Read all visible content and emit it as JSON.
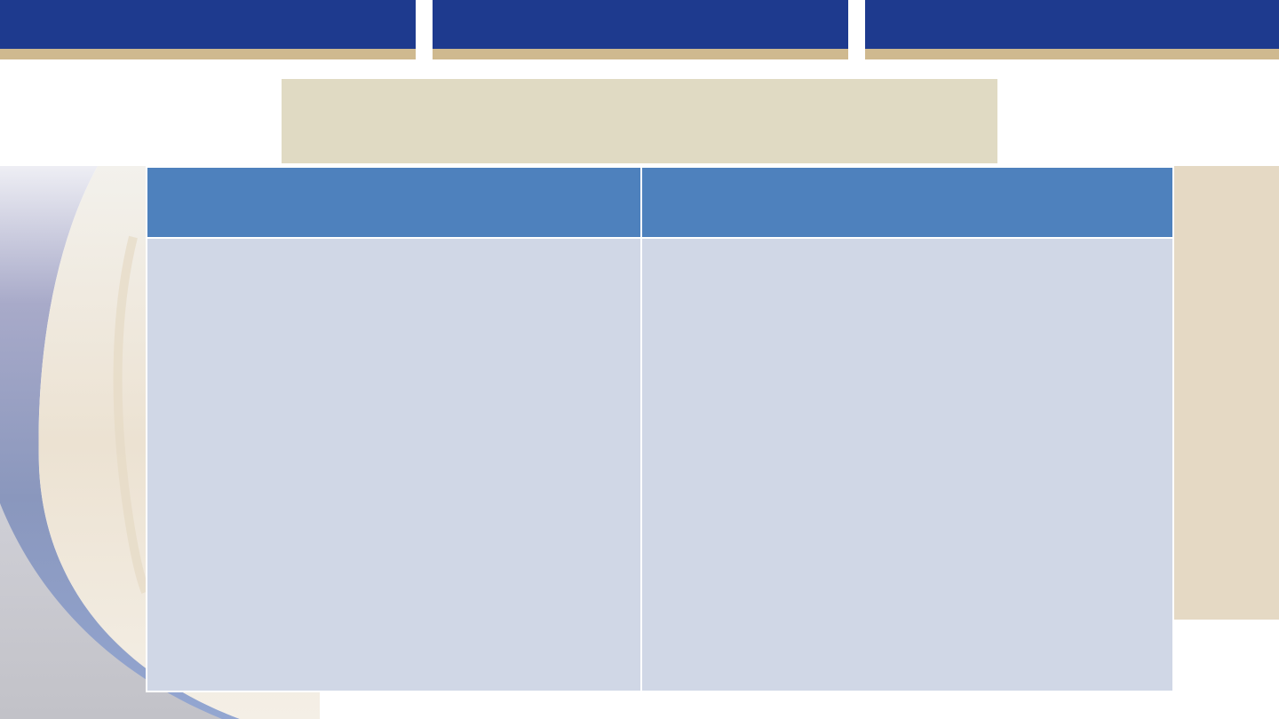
{
  "slide": {
    "title": "",
    "table": {
      "headers": [
        "",
        ""
      ],
      "rows": [
        [
          "",
          ""
        ]
      ]
    }
  },
  "colors": {
    "banner_blue": "#1e3a8e",
    "banner_gold": "#cfb98f",
    "title_fill": "#e0dac3",
    "background_band": "#e5d9c4",
    "header_fill": "#4e81bd",
    "cell_fill": "#d0d7e6"
  }
}
